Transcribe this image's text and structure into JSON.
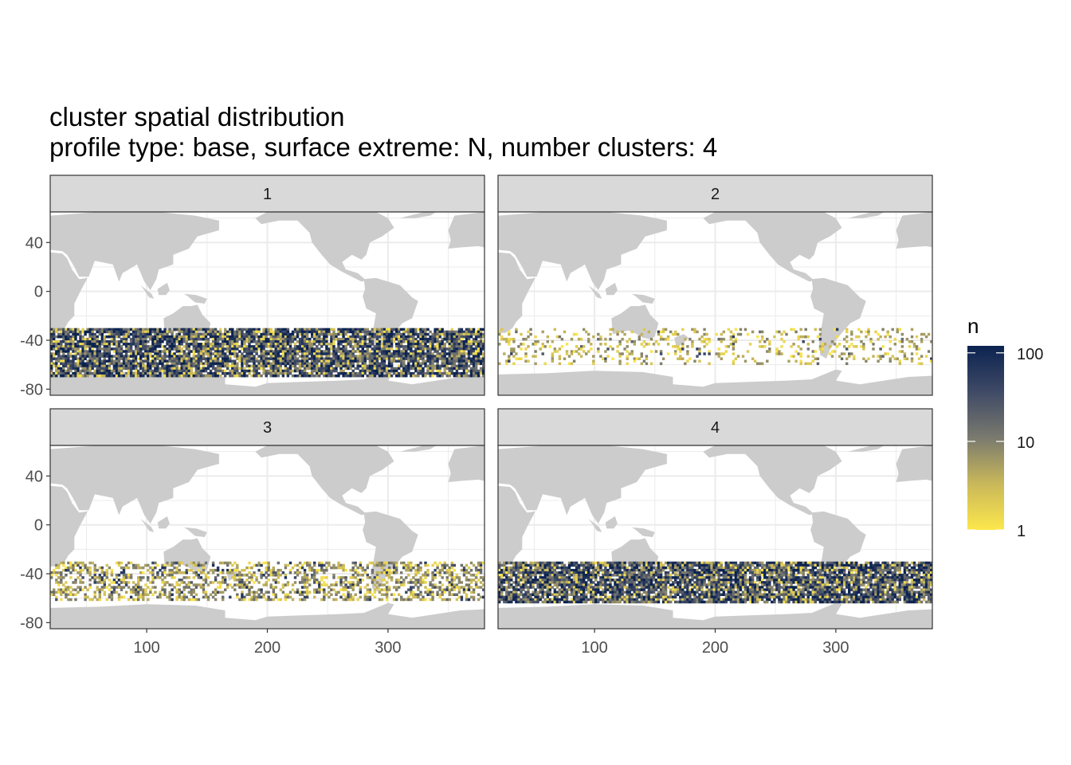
{
  "chart_data": {
    "type": "heatmap",
    "title": "cluster spatial distribution",
    "subtitle": "profile type: base, surface extreme: N, number clusters: 4",
    "xlabel": "",
    "ylabel": "",
    "xlim": [
      20,
      380
    ],
    "ylim": [
      -85,
      65
    ],
    "x_ticks": [
      100,
      200,
      300
    ],
    "y_ticks": [
      40,
      0,
      -40,
      -80
    ],
    "grid": true,
    "facets": [
      {
        "label": "1",
        "lat_range": [
          -70,
          -30
        ],
        "density": "high"
      },
      {
        "label": "2",
        "lat_range": [
          -60,
          -30
        ],
        "density": "sparse"
      },
      {
        "label": "3",
        "lat_range": [
          -62,
          -30
        ],
        "density": "medium"
      },
      {
        "label": "4",
        "lat_range": [
          -65,
          -30
        ],
        "density": "high"
      }
    ],
    "legend": {
      "title": "n",
      "scale": "log10",
      "breaks": [
        "100",
        "10",
        "1"
      ],
      "range": [
        1,
        120
      ],
      "placement": "right",
      "colors": [
        "#fde74c",
        "#7a7a6e",
        "#0c2350"
      ]
    },
    "colors": {
      "land": "#cccccc",
      "ocean": "#ffffff",
      "grid": "#ebebeb",
      "strip": "#d9d9d9",
      "panel_border": "#333333"
    }
  }
}
